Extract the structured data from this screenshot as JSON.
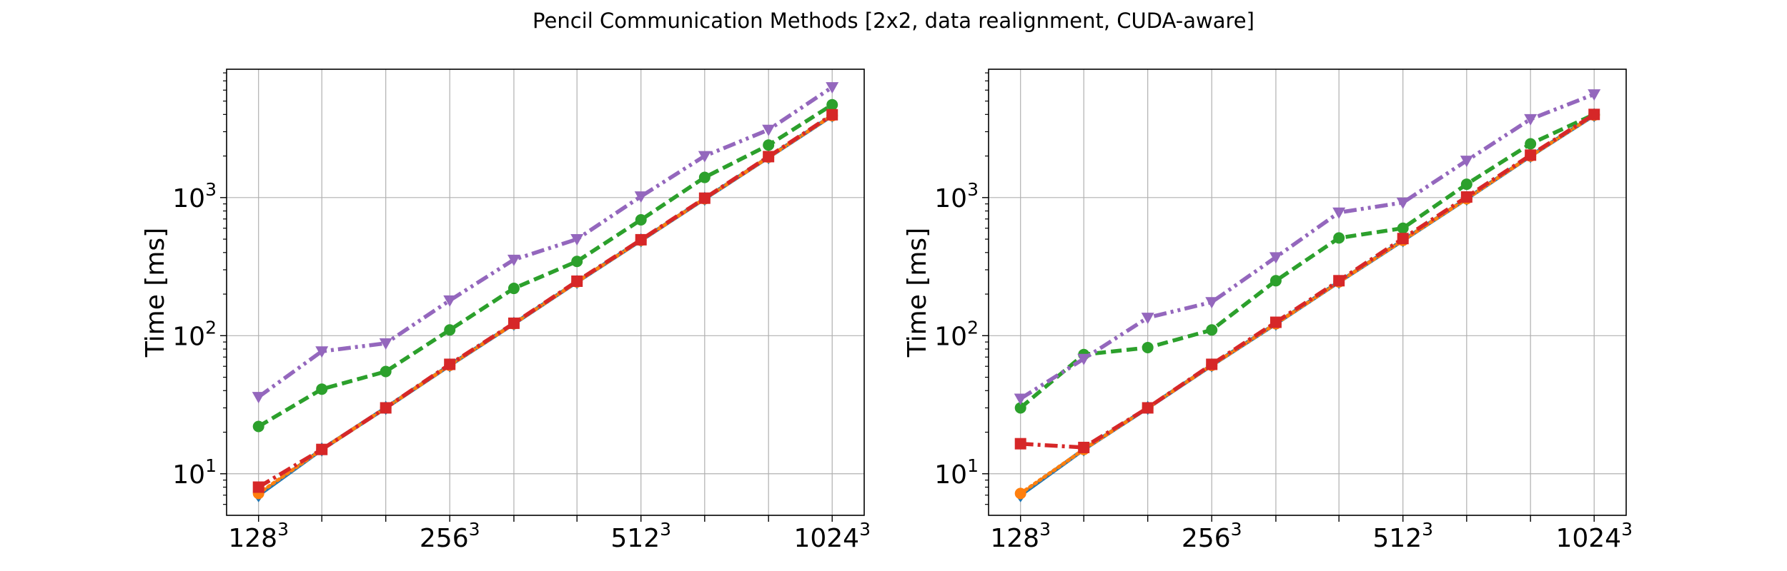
{
  "figure_title": "Pencil Communication Methods [2x2, data realignment, CUDA-aware]",
  "colors": {
    "blue": "#1f77b4",
    "orange": "#ff7f0e",
    "green": "#2ca02c",
    "red": "#d62728",
    "purple": "#9467bd",
    "grid": "#b0b0b0"
  },
  "chart_data": [
    {
      "type": "line",
      "title": "",
      "xlabel": "",
      "ylabel": "Time [ms]",
      "xscale": "log2",
      "yscale": "log",
      "grid": true,
      "xlim": [
        114,
        1150
      ],
      "ylim": [
        5,
        8500
      ],
      "x": [
        128,
        161,
        203,
        256,
        323,
        406,
        512,
        645,
        813,
        1024
      ],
      "xticks": [
        {
          "value": 128,
          "base": "128",
          "exp": "3"
        },
        {
          "value": 256,
          "base": "256",
          "exp": "3"
        },
        {
          "value": 512,
          "base": "512",
          "exp": "3"
        },
        {
          "value": 1024,
          "base": "1024",
          "exp": "3"
        }
      ],
      "yticks": [
        {
          "value": 10,
          "base": "10",
          "exp": "1"
        },
        {
          "value": 100,
          "base": "10",
          "exp": "2"
        },
        {
          "value": 1000,
          "base": "10",
          "exp": "3"
        }
      ],
      "series": [
        {
          "color": "blue",
          "style": "solid",
          "marker": "diamond",
          "values": [
            7.0,
            15,
            30,
            61,
            122,
            245,
            490,
            980,
            1960,
            3920
          ]
        },
        {
          "color": "orange",
          "style": "dotted",
          "marker": "circle",
          "values": [
            7.2,
            15,
            30,
            61,
            122,
            245,
            490,
            980,
            1960,
            3920
          ]
        },
        {
          "color": "green",
          "style": "dashed",
          "marker": "circle",
          "values": [
            22,
            41,
            55,
            110,
            220,
            345,
            690,
            1400,
            2400,
            4700
          ]
        },
        {
          "color": "red",
          "style": "dashdot",
          "marker": "square",
          "values": [
            8.0,
            15,
            30,
            62,
            123,
            248,
            495,
            990,
            1980,
            3980
          ]
        },
        {
          "color": "purple",
          "style": "dashdotdot",
          "marker": "triangle-down",
          "values": [
            36,
            77,
            88,
            180,
            355,
            500,
            1020,
            2000,
            3100,
            6300
          ]
        }
      ]
    },
    {
      "type": "line",
      "title": "",
      "xlabel": "",
      "ylabel": "Time [ms]",
      "xscale": "log2",
      "yscale": "log",
      "grid": true,
      "xlim": [
        114,
        1150
      ],
      "ylim": [
        5,
        8500
      ],
      "x": [
        128,
        161,
        203,
        256,
        323,
        406,
        512,
        645,
        813,
        1024
      ],
      "xticks": [
        {
          "value": 128,
          "base": "128",
          "exp": "3"
        },
        {
          "value": 256,
          "base": "256",
          "exp": "3"
        },
        {
          "value": 512,
          "base": "512",
          "exp": "3"
        },
        {
          "value": 1024,
          "base": "1024",
          "exp": "3"
        }
      ],
      "yticks": [
        {
          "value": 10,
          "base": "10",
          "exp": "1"
        },
        {
          "value": 100,
          "base": "10",
          "exp": "2"
        },
        {
          "value": 1000,
          "base": "10",
          "exp": "3"
        }
      ],
      "series": [
        {
          "color": "blue",
          "style": "solid",
          "marker": "diamond",
          "values": [
            7.0,
            15,
            30,
            61,
            122,
            245,
            490,
            980,
            2000,
            3950
          ]
        },
        {
          "color": "orange",
          "style": "dotted",
          "marker": "circle",
          "values": [
            7.2,
            15,
            30,
            61,
            122,
            245,
            490,
            980,
            2000,
            3950
          ]
        },
        {
          "color": "green",
          "style": "dashed",
          "marker": "circle",
          "values": [
            30,
            73,
            82,
            110,
            250,
            510,
            600,
            1250,
            2450,
            4000
          ]
        },
        {
          "color": "red",
          "style": "dashdot",
          "marker": "square",
          "values": [
            16.5,
            15.5,
            30,
            62,
            125,
            250,
            505,
            1010,
            2030,
            4000
          ]
        },
        {
          "color": "purple",
          "style": "dashdotdot",
          "marker": "triangle-down",
          "values": [
            35,
            68,
            135,
            175,
            370,
            780,
            920,
            1850,
            3700,
            5600
          ]
        }
      ]
    }
  ]
}
